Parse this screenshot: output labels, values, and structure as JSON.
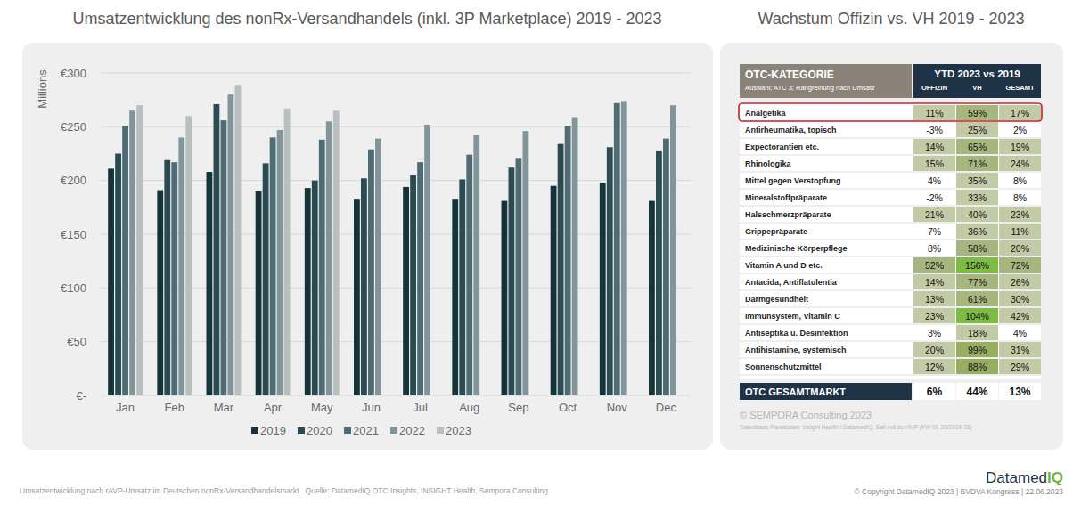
{
  "chart_data": {
    "type": "bar",
    "title": "Umsatzentwicklung des nonRx-Versandhandels (inkl. 3P Marketplace) 2019 - 2023",
    "y_label": "Millions",
    "categories": [
      "Jan",
      "Feb",
      "Mar",
      "Apr",
      "May",
      "Jun",
      "Jul",
      "Aug",
      "Sep",
      "Oct",
      "Nov",
      "Dec"
    ],
    "series": [
      {
        "name": "2019",
        "color": "#163339",
        "values": [
          211,
          191,
          208,
          190,
          193,
          183,
          194,
          183,
          181,
          195,
          198,
          181
        ]
      },
      {
        "name": "2020",
        "color": "#2c4a52",
        "values": [
          225,
          219,
          271,
          216,
          200,
          202,
          205,
          201,
          212,
          234,
          231,
          228
        ]
      },
      {
        "name": "2021",
        "color": "#4f6b73",
        "values": [
          251,
          217,
          256,
          240,
          238,
          229,
          217,
          224,
          221,
          251,
          272,
          239
        ]
      },
      {
        "name": "2022",
        "color": "#81959b",
        "values": [
          265,
          240,
          280,
          247,
          255,
          239,
          252,
          242,
          246,
          259,
          274,
          270
        ]
      },
      {
        "name": "2023",
        "color": "#b9bfc1",
        "values": [
          270,
          260,
          289,
          267,
          265,
          null,
          null,
          null,
          null,
          null,
          null,
          null
        ]
      }
    ],
    "ylim": [
      0,
      300
    ],
    "yticks": [
      {
        "value": 0,
        "label": "€-"
      },
      {
        "value": 50,
        "label": "€50"
      },
      {
        "value": 100,
        "label": "€100"
      },
      {
        "value": 150,
        "label": "€150"
      },
      {
        "value": 200,
        "label": "€200"
      },
      {
        "value": 250,
        "label": "€250"
      },
      {
        "value": 300,
        "label": "€300"
      }
    ],
    "grid": true,
    "legend": "bottom",
    "caption": "Umsatzentwicklung nach rAVP-Umsatz im Deutschen nonRx-Versandhandelsmarkt.. Quelle: DatamedIQ OTC Insights, INSIGHT Health, Sempora Consulting"
  },
  "table": {
    "title": "Wachstum Offizin vs. VH 2019 - 2023",
    "header": {
      "category": "OTC-KATEGORIE",
      "category_note": "Auswahl; ATC 3; Rangreihung nach Umsatz",
      "period": "YTD 2023 vs 2019",
      "columns": [
        "OFFIZIN",
        "VH",
        "GESAMT"
      ]
    },
    "rows": [
      {
        "label": "Analgetika",
        "values": [
          11,
          59,
          17
        ],
        "value_labels": [
          "11%",
          "59%",
          "17%"
        ],
        "highlight": true
      },
      {
        "label": "Antirheumatika, topisch",
        "values": [
          -3,
          25,
          2
        ],
        "value_labels": [
          "-3%",
          "25%",
          "2%"
        ]
      },
      {
        "label": "Expectorantien etc.",
        "values": [
          14,
          65,
          19
        ],
        "value_labels": [
          "14%",
          "65%",
          "19%"
        ]
      },
      {
        "label": "Rhinologika",
        "values": [
          15,
          71,
          24
        ],
        "value_labels": [
          "15%",
          "71%",
          "24%"
        ]
      },
      {
        "label": "Mittel gegen Verstopfung",
        "values": [
          4,
          35,
          8
        ],
        "value_labels": [
          "4%",
          "35%",
          "8%"
        ]
      },
      {
        "label": "Mineralstoffpräparate",
        "values": [
          -2,
          33,
          8
        ],
        "value_labels": [
          "-2%",
          "33%",
          "8%"
        ]
      },
      {
        "label": "Halsschmerzpräparate",
        "values": [
          21,
          40,
          23
        ],
        "value_labels": [
          "21%",
          "40%",
          "23%"
        ]
      },
      {
        "label": "Grippepräparate",
        "values": [
          7,
          36,
          11
        ],
        "value_labels": [
          "7%",
          "36%",
          "11%"
        ]
      },
      {
        "label": "Medizinische Körperpflege",
        "values": [
          8,
          58,
          20
        ],
        "value_labels": [
          "8%",
          "58%",
          "20%"
        ]
      },
      {
        "label": "Vitamin A und D etc.",
        "values": [
          52,
          156,
          72
        ],
        "value_labels": [
          "52%",
          "156%",
          "72%"
        ]
      },
      {
        "label": "Antacida, Antiflatulentia",
        "values": [
          14,
          77,
          26
        ],
        "value_labels": [
          "14%",
          "77%",
          "26%"
        ]
      },
      {
        "label": "Darmgesundheit",
        "values": [
          13,
          61,
          30
        ],
        "value_labels": [
          "13%",
          "61%",
          "30%"
        ]
      },
      {
        "label": "Immunsystem, Vitamin C",
        "values": [
          23,
          104,
          42
        ],
        "value_labels": [
          "23%",
          "104%",
          "42%"
        ]
      },
      {
        "label": "Antiseptika u. Desinfektion",
        "values": [
          3,
          18,
          4
        ],
        "value_labels": [
          "3%",
          "18%",
          "4%"
        ]
      },
      {
        "label": "Antihistamine, systemisch",
        "values": [
          20,
          99,
          31
        ],
        "value_labels": [
          "20%",
          "99%",
          "31%"
        ]
      },
      {
        "label": "Sonnenschutzmittel",
        "values": [
          12,
          88,
          29
        ],
        "value_labels": [
          "12%",
          "88%",
          "29%"
        ]
      }
    ],
    "total": {
      "label": "OTC GESAMTMARKT",
      "values": [
        6,
        44,
        13
      ],
      "value_labels": [
        "6%",
        "44%",
        "13%"
      ]
    },
    "source": "© SEMPORA Consulting 2023",
    "source_note": "Datenbasis Paneldaten: Insight Health / DatamedIQ, Sell-out zu rAVP (KW 01-20/2019-23)"
  },
  "footer": {
    "logo": [
      "Datamed",
      "IQ"
    ],
    "copyright": "© Copyright DatamedIQ 2023 | BVDVA Kongress | 22.06.2023"
  }
}
